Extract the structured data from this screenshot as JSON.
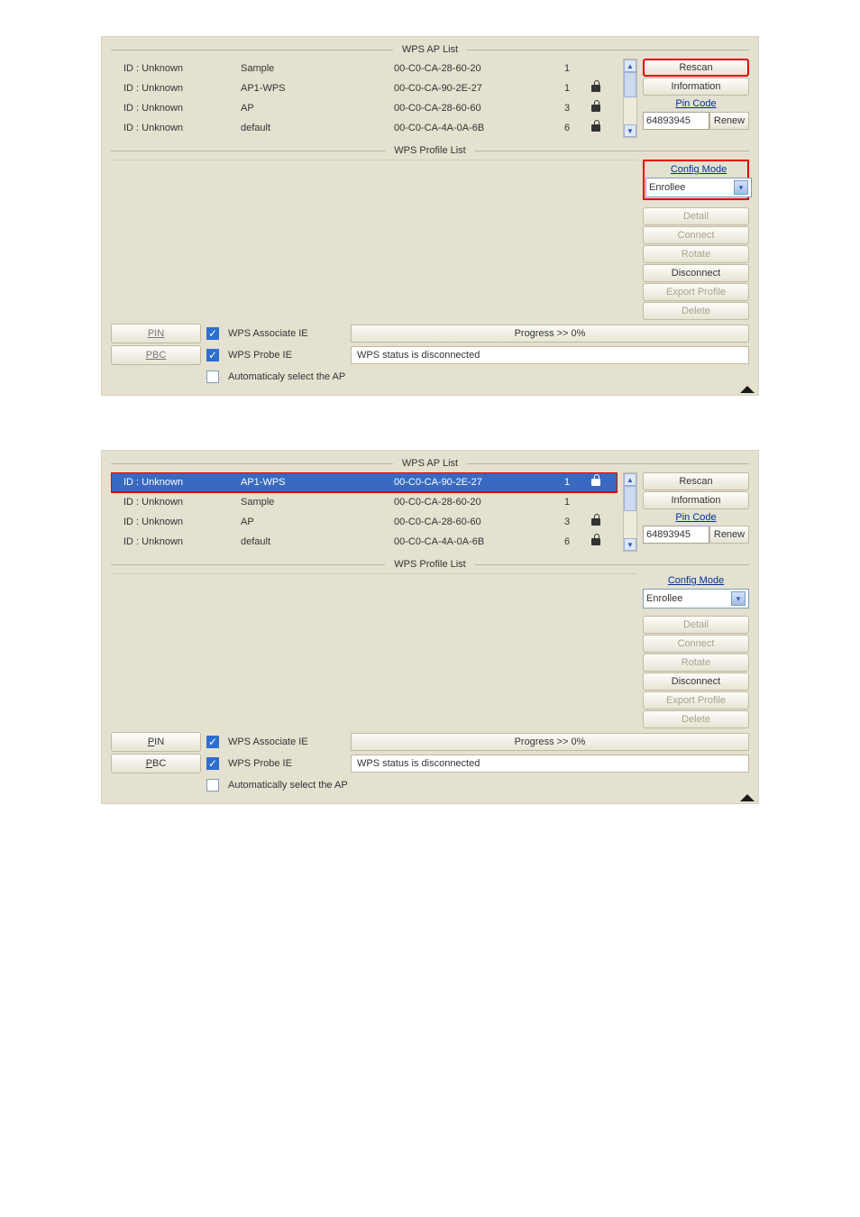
{
  "sections": {
    "ap_title": "WPS AP List",
    "profile_title": "WPS Profile List"
  },
  "panel1": {
    "ap_rows": [
      {
        "id": "ID : Unknown",
        "ssid": "Sample",
        "mac": "00-C0-CA-28-60-20",
        "ch": "1",
        "lock": false,
        "selected": false
      },
      {
        "id": "ID : Unknown",
        "ssid": "AP1-WPS",
        "mac": "00-C0-CA-90-2E-27",
        "ch": "1",
        "lock": true,
        "selected": false
      },
      {
        "id": "ID : Unknown",
        "ssid": "AP",
        "mac": "00-C0-CA-28-60-60",
        "ch": "3",
        "lock": true,
        "selected": false
      },
      {
        "id": "ID : Unknown",
        "ssid": "default",
        "mac": "00-C0-CA-4A-0A-6B",
        "ch": "6",
        "lock": true,
        "selected": false
      }
    ],
    "highlight_rescan": true,
    "highlight_config_section": true,
    "highlight_ap_row_index": -1,
    "pin_btn_enabled": false,
    "pbc_btn_enabled": false,
    "auto_label": "Automaticaly select the AP"
  },
  "panel2": {
    "ap_rows": [
      {
        "id": "ID : Unknown",
        "ssid": "AP1-WPS",
        "mac": "00-C0-CA-90-2E-27",
        "ch": "1",
        "lock": true,
        "selected": true
      },
      {
        "id": "ID : Unknown",
        "ssid": "Sample",
        "mac": "00-C0-CA-28-60-20",
        "ch": "1",
        "lock": false,
        "selected": false
      },
      {
        "id": "ID : Unknown",
        "ssid": "AP",
        "mac": "00-C0-CA-28-60-60",
        "ch": "3",
        "lock": true,
        "selected": false
      },
      {
        "id": "ID : Unknown",
        "ssid": "default",
        "mac": "00-C0-CA-4A-0A-6B",
        "ch": "6",
        "lock": true,
        "selected": false
      }
    ],
    "highlight_rescan": false,
    "highlight_config_section": false,
    "highlight_ap_row_index": 0,
    "pin_btn_enabled": true,
    "pbc_btn_enabled": true,
    "auto_label": "Automatically select the AP"
  },
  "side": {
    "rescan": "Rescan",
    "information": "Information",
    "pincode_label": "Pin Code",
    "pin_value": "64893945",
    "renew": "Renew",
    "config_mode_label": "Config Mode",
    "config_mode_value": "Enrollee",
    "detail": "Detail",
    "connect": "Connect",
    "rotate": "Rotate",
    "disconnect": "Disconnect",
    "export": "Export Profile",
    "delete": "Delete"
  },
  "bottom": {
    "pin_label": "P",
    "pin_label2": "IN",
    "pbc_label": "P",
    "pbc_label2": "BC",
    "assoc": "WPS Associate IE",
    "probe": "WPS Probe IE",
    "progress": "Progress >> 0%",
    "status": "WPS status is disconnected"
  },
  "colors": {
    "panel_bg": "#e4e1d0",
    "selected_row": "#3a6ac0",
    "link_blue": "#0030a0",
    "red": "#e40000"
  }
}
